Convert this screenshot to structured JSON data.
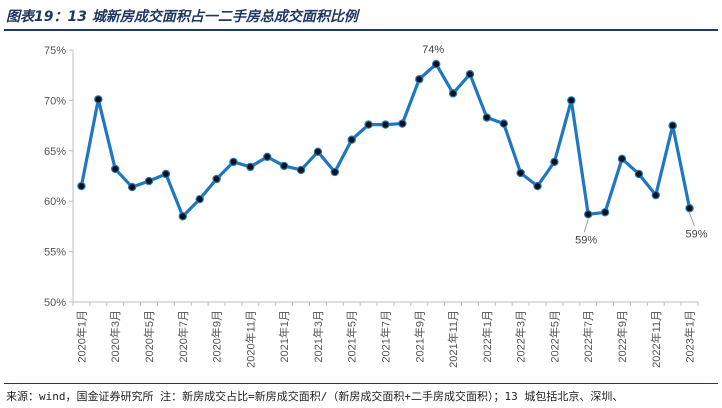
{
  "figure": {
    "title": "图表19：13 城新房成交面积占一二手房总成交面积比例",
    "source": "来源：wind，国金证券研究所 注：新房成交占比=新房成交面积/（新房成交面积+二手房成交面积）；13 城包括北京、深圳、"
  },
  "colors": {
    "line": "#1f77c4",
    "marker_fill": "#111111",
    "axis": "#bfbfbf",
    "title": "#1f3864"
  },
  "chart_data": {
    "type": "line",
    "title": "",
    "xlabel": "",
    "ylabel": "",
    "ylim": [
      50,
      75
    ],
    "yticks": [
      "50%",
      "55%",
      "60%",
      "65%",
      "70%",
      "75%"
    ],
    "grid": false,
    "x": [
      "2020-01",
      "2020-02",
      "2020-03",
      "2020-04",
      "2020-05",
      "2020-06",
      "2020-07",
      "2020-08",
      "2020-09",
      "2020-10",
      "2020-11",
      "2020-12",
      "2021-01",
      "2021-02",
      "2021-03",
      "2021-04",
      "2021-05",
      "2021-06",
      "2021-07",
      "2021-08",
      "2021-09",
      "2021-10",
      "2021-11",
      "2021-12",
      "2022-01",
      "2022-02",
      "2022-03",
      "2022-04",
      "2022-05",
      "2022-06",
      "2022-07",
      "2022-08",
      "2022-09",
      "2022-10",
      "2022-11",
      "2022-12",
      "2023-01"
    ],
    "xtick_labels": [
      "2020年1月",
      "",
      "2020年3月",
      "",
      "2020年5月",
      "",
      "2020年7月",
      "",
      "2020年9月",
      "",
      "2020年11月",
      "",
      "2021年1月",
      "",
      "2021年3月",
      "",
      "2021年5月",
      "",
      "2021年7月",
      "",
      "2021年9月",
      "",
      "2021年11月",
      "",
      "2022年1月",
      "",
      "2022年3月",
      "",
      "2022年5月",
      "",
      "2022年7月",
      "",
      "2022年9月",
      "",
      "2022年11月",
      "",
      "2023年1月"
    ],
    "series": [
      {
        "values": [
          61.5,
          70.1,
          63.2,
          61.4,
          62.0,
          62.7,
          58.5,
          60.2,
          62.2,
          63.9,
          63.4,
          64.4,
          63.5,
          63.1,
          64.9,
          62.9,
          66.1,
          67.6,
          67.6,
          67.7,
          72.1,
          73.6,
          70.7,
          72.6,
          68.3,
          67.7,
          62.8,
          61.5,
          63.9,
          70.0,
          58.7,
          58.9,
          64.2,
          62.7,
          60.6,
          67.5,
          59.3
        ]
      }
    ],
    "annotations": [
      {
        "index": 21,
        "text": "74%"
      },
      {
        "index": 30,
        "text": "59%"
      },
      {
        "index": 36,
        "text": "59%"
      }
    ]
  }
}
